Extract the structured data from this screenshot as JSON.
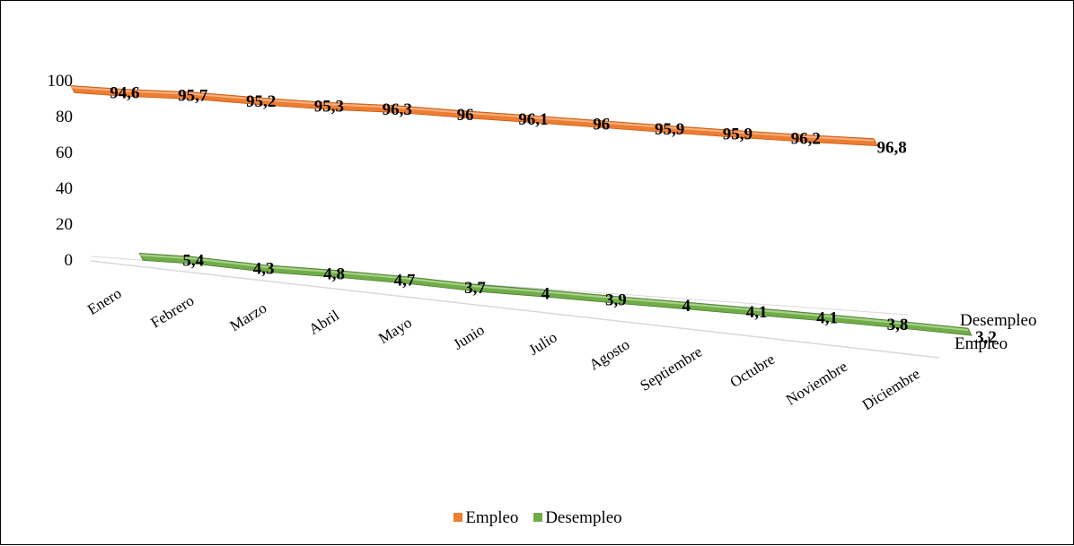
{
  "chart_data": {
    "type": "line",
    "style": "3d-ribbon",
    "categories": [
      "Enero",
      "Febrero",
      "Marzo",
      "Abril",
      "Mayo",
      "Junio",
      "Julio",
      "Agosto",
      "Septiembre",
      "Octubre",
      "Noviembre",
      "Diciembre"
    ],
    "series": [
      {
        "name": "Empleo",
        "color": "#ED7D31",
        "values": [
          94.6,
          95.7,
          95.2,
          95.3,
          96.3,
          96,
          96.1,
          96,
          95.9,
          95.9,
          96.2,
          96.8
        ],
        "labels": [
          "94,6",
          "95,7",
          "95,2",
          "95,3",
          "96,3",
          "96",
          "96,1",
          "96",
          "95,9",
          "95,9",
          "96,2",
          "96,8"
        ]
      },
      {
        "name": "Desempleo",
        "color": "#70AD47",
        "values": [
          5.4,
          4.3,
          4.8,
          4.7,
          3.7,
          4,
          3.9,
          4,
          4.1,
          4.1,
          3.8,
          3.2
        ],
        "labels": [
          "5,4",
          "4,3",
          "4,8",
          "4,7",
          "3,7",
          "4",
          "3,9",
          "4",
          "4,1",
          "4,1",
          "3,8",
          "3,2"
        ]
      }
    ],
    "y_ticks": [
      "0",
      "20",
      "40",
      "60",
      "80",
      "100"
    ],
    "ylim": [
      0,
      100
    ],
    "depth_axis_labels": [
      "Desempleo",
      "Empleo"
    ],
    "legend": {
      "position": "bottom",
      "entries": [
        "Empleo",
        "Desempleo"
      ]
    },
    "grid": false
  }
}
